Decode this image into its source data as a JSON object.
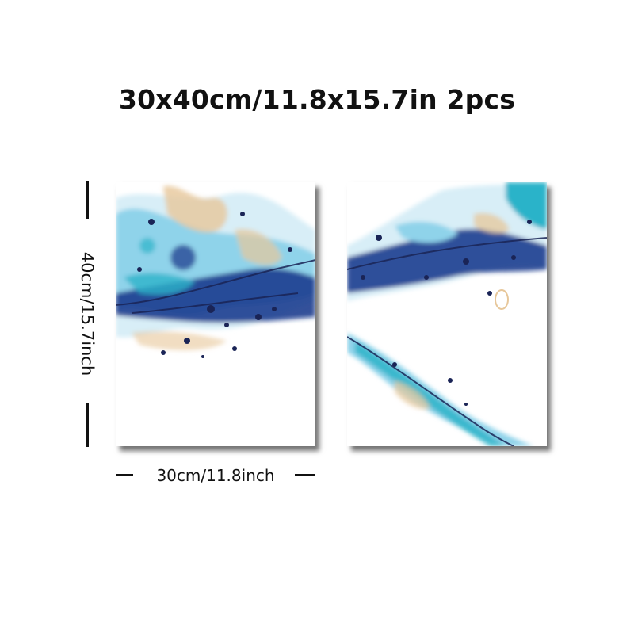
{
  "title": "30x40cm/11.8x15.7in 2pcs",
  "height_label": "40cm/15.7inch",
  "width_label": "30cm/11.8inch",
  "palette": {
    "deep_blue": "#1d3d8f",
    "navy": "#1a2456",
    "sky": "#8fd3ea",
    "teal": "#2bb3c9",
    "sand": "#e7c79a",
    "pale": "#d8eef7"
  },
  "panels": [
    {
      "name": "left",
      "alt": "abstract blue splash artwork, left panel"
    },
    {
      "name": "right",
      "alt": "abstract blue splash artwork, right panel"
    }
  ]
}
